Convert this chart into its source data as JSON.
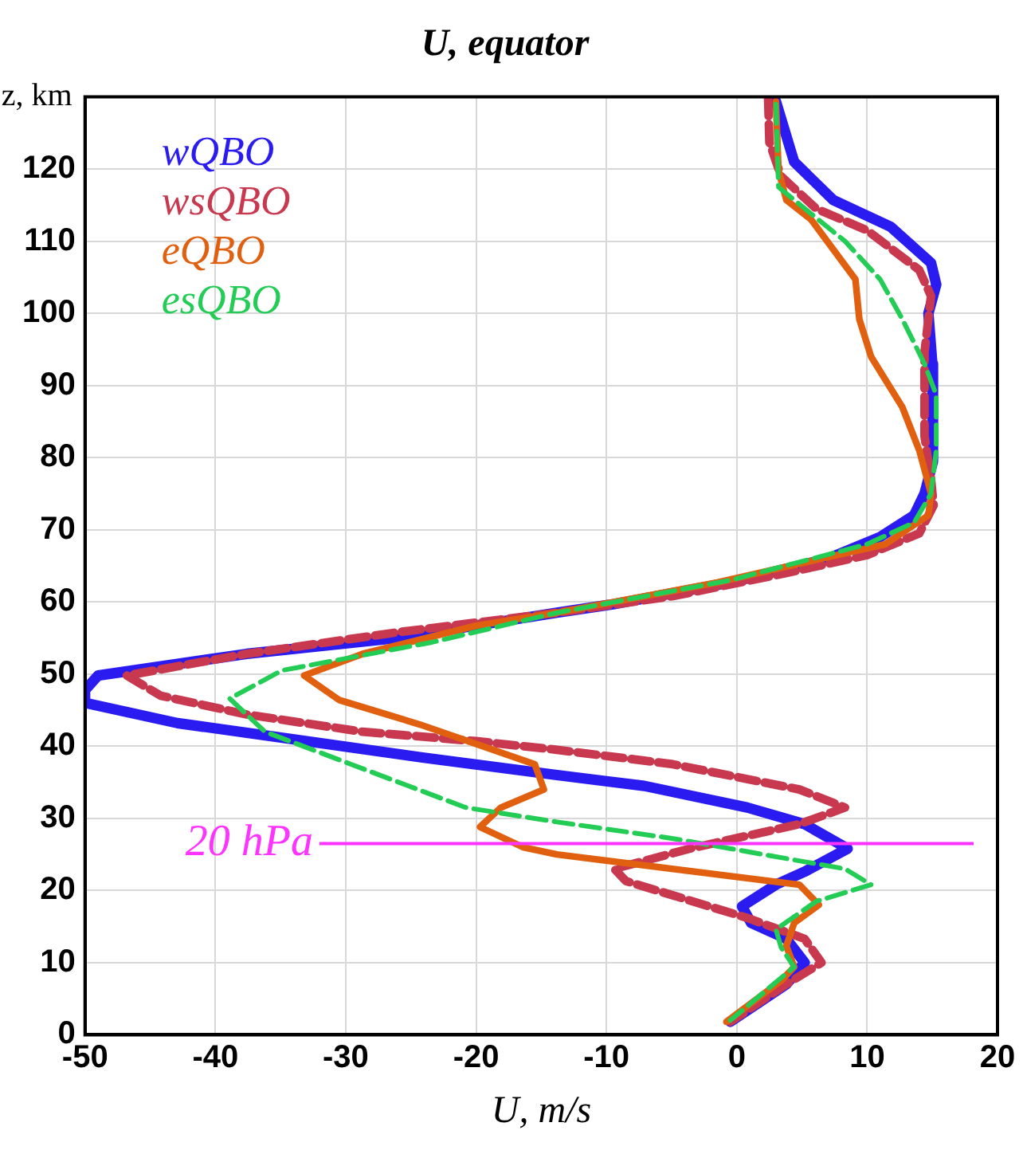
{
  "chart_data": {
    "type": "line",
    "title": "U, equator",
    "xlabel": "U, m/s",
    "ylabel": "z, km",
    "xlim": [
      -50,
      20
    ],
    "xticks": [
      -50,
      -40,
      -30,
      -20,
      -10,
      0,
      10,
      20
    ],
    "ylim": [
      0,
      130
    ],
    "yticks": [
      0,
      10,
      20,
      30,
      40,
      50,
      60,
      70,
      80,
      90,
      100,
      110,
      120
    ],
    "grid": true,
    "legend": "top left",
    "ref_lines": [
      {
        "axis": "y",
        "value": 26.5,
        "label": "20 hPa",
        "color": "#ff33ff"
      }
    ],
    "series": [
      {
        "name": "wQBO",
        "color": "#2a1cf0",
        "line_style": "solid",
        "x": [
          3,
          4.4,
          7.4,
          11.8,
          14.9,
          15.3,
          14.7,
          15,
          15.1,
          15,
          14.4,
          13.6,
          11,
          7,
          -0.5,
          -9.4,
          -13.8,
          -26,
          -37.6,
          -49,
          -50,
          -50,
          -42.9,
          -33,
          -24,
          -13.8,
          -7.1,
          0.8,
          5.2,
          8.5,
          5.2,
          3,
          0.4,
          1.1,
          3.8,
          5.2,
          3.8,
          -0.5
        ],
        "values": [
          129.4,
          121,
          115.7,
          112,
          107,
          104,
          100,
          93,
          87,
          79.5,
          75,
          72,
          69,
          66,
          62.7,
          59.7,
          58.5,
          55,
          52.8,
          49.8,
          47.8,
          46,
          43.2,
          40.7,
          38.4,
          36,
          34.5,
          31.5,
          29.2,
          25.8,
          22.6,
          20.8,
          17.8,
          15.5,
          13.3,
          10,
          7,
          1.8
        ]
      },
      {
        "name": "wsQBO",
        "color": "#c8384e",
        "line_style": "dashed",
        "x": [
          2.4,
          2.5,
          3.4,
          6.1,
          10,
          14,
          14.9,
          14.4,
          14.4,
          14.9,
          15.1,
          14,
          10,
          3.8,
          -4.9,
          -13.8,
          -26,
          -37.6,
          -46.8,
          -44.2,
          -37.6,
          -28.7,
          -20,
          -13.8,
          -4.9,
          4.8,
          8.3,
          4.8,
          -3.6,
          -9.4,
          -8.5,
          0.8,
          5.2,
          6.5,
          3.8,
          -0.5
        ],
        "values": [
          130,
          123.7,
          119,
          114.5,
          111.5,
          106,
          102.4,
          94.6,
          83,
          77,
          73.4,
          69.5,
          66.5,
          64,
          60.8,
          58.5,
          55.8,
          52.8,
          49.8,
          47,
          44.4,
          42,
          40.7,
          39.5,
          37.5,
          34,
          31.5,
          29.2,
          25.8,
          23,
          21.3,
          16.2,
          13.3,
          10,
          7,
          1.8
        ]
      },
      {
        "name": "eQBO",
        "color": "#e06010",
        "line_style": "solid",
        "x": [
          3,
          3.2,
          3.8,
          5.7,
          9.1,
          9.4,
          10.3,
          12.7,
          14,
          14.9,
          14.7,
          11.4,
          6.5,
          -1.5,
          -13.8,
          -20,
          -28.7,
          -33.2,
          -30.5,
          -24.3,
          -15.5,
          -14.8,
          -18.1,
          -19.7,
          -16.4,
          -13.8,
          4.8,
          6.3,
          4.4,
          3.8,
          4.4,
          3.4,
          -0.8
        ],
        "values": [
          129.4,
          119.8,
          115.7,
          113,
          104.7,
          99.2,
          94,
          87,
          81,
          75,
          72,
          68,
          66,
          62.7,
          58.5,
          56.7,
          52.8,
          49.8,
          46.4,
          43,
          37.5,
          34,
          31.5,
          28.8,
          26,
          25,
          20.8,
          18,
          15.5,
          12.3,
          9.4,
          7.5,
          1.8
        ]
      },
      {
        "name": "esQBO",
        "color": "#22cc55",
        "line_style": "dashed",
        "x": [
          3,
          3.2,
          5.7,
          8.3,
          11,
          12.7,
          14.4,
          15.3,
          15.3,
          14.9,
          13.6,
          10,
          -0.5,
          -13.8,
          -23.4,
          -34.9,
          -38.9,
          -36.2,
          -29.6,
          -20.8,
          -13.8,
          -4.9,
          8.3,
          10.3,
          6.1,
          3,
          3.4,
          4.4,
          -0.5
        ],
        "values": [
          129,
          117.5,
          113.8,
          110,
          104.7,
          99.2,
          93,
          88.7,
          81,
          75,
          71,
          68,
          63,
          58.5,
          54.4,
          50.5,
          46.6,
          42,
          37.5,
          31.5,
          29.5,
          27.2,
          23,
          20.8,
          18.5,
          14.6,
          12.1,
          9.4,
          2
        ]
      }
    ]
  }
}
